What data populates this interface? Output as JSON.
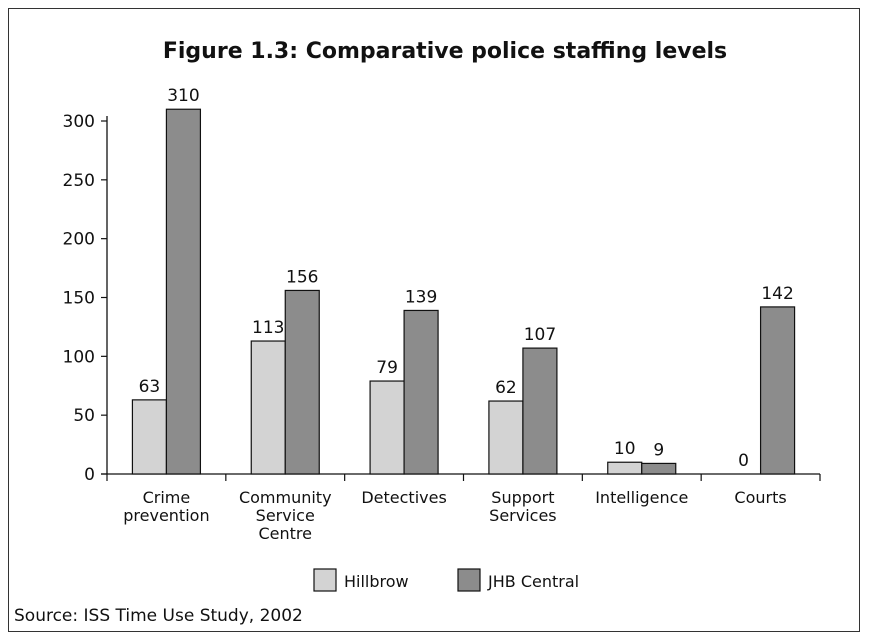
{
  "chart_data": {
    "type": "bar",
    "title": "Figure 1.3: Comparative police staffing levels",
    "categories": [
      [
        "Crime",
        "prevention"
      ],
      [
        "Community",
        "Service",
        "Centre"
      ],
      [
        "Detectives"
      ],
      [
        "Support",
        "Services"
      ],
      [
        "Intelligence"
      ],
      [
        "Courts"
      ]
    ],
    "series": [
      {
        "name": "Hillbrow",
        "values": [
          63,
          113,
          79,
          62,
          10,
          0
        ],
        "color": "#d3d3d3"
      },
      {
        "name": "JHB Central",
        "values": [
          310,
          156,
          139,
          107,
          9,
          142
        ],
        "color": "#8c8c8c"
      }
    ],
    "yticks": [
      "0",
      "50",
      "100",
      "150",
      "200",
      "250",
      "300"
    ],
    "ylim": [
      0,
      300
    ],
    "legend_position": "bottom-center"
  },
  "source": "Source: ISS Time Use Study, 2002"
}
